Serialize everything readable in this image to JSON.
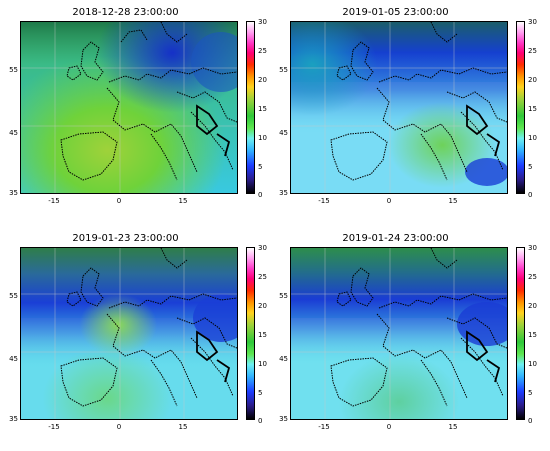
{
  "panels": [
    {
      "title": "2018-12-28 23:00:00",
      "lat_ticks": [
        "55",
        "45",
        "35"
      ],
      "lon_ticks": [
        "-15",
        "0",
        "15"
      ],
      "colorbar_ticks": [
        "30",
        "25",
        "20",
        "15",
        "10",
        "5",
        "0"
      ],
      "field_palette": {
        "base": "#39c9e0",
        "dominant": "#6fd23a",
        "north": "#1c4fd8",
        "corner": "#2f9a44"
      }
    },
    {
      "title": "2019-01-05 23:00:00",
      "lat_ticks": [
        "55",
        "45",
        "35"
      ],
      "lon_ticks": [
        "-15",
        "0",
        "15"
      ],
      "colorbar_ticks": [
        "30",
        "25",
        "20",
        "15",
        "10",
        "5",
        "0"
      ],
      "field_palette": {
        "base": "#5ad6f0",
        "dominant": "#8de0f8",
        "north": "#1540d0",
        "corner": "#2a8a52"
      }
    },
    {
      "title": "2019-01-23 23:00:00",
      "lat_ticks": [
        "55",
        "45",
        "35"
      ],
      "lon_ticks": [
        "-15",
        "0",
        "15"
      ],
      "colorbar_ticks": [
        "30",
        "25",
        "20",
        "15",
        "10",
        "5",
        "0"
      ],
      "field_palette": {
        "base": "#4ad8e8",
        "dominant": "#7fe0f0",
        "north": "#1a3fd6",
        "corner": "#3a9a50"
      }
    },
    {
      "title": "2019-01-24 23:00:00",
      "lat_ticks": [
        "55",
        "45",
        "35"
      ],
      "lon_ticks": [
        "-15",
        "0",
        "15"
      ],
      "colorbar_ticks": [
        "30",
        "25",
        "20",
        "15",
        "10",
        "5",
        "0"
      ],
      "field_palette": {
        "base": "#4ad8e8",
        "dominant": "#8be6f4",
        "north": "#1a3cd4",
        "corner": "#2d8e4c"
      }
    }
  ]
}
